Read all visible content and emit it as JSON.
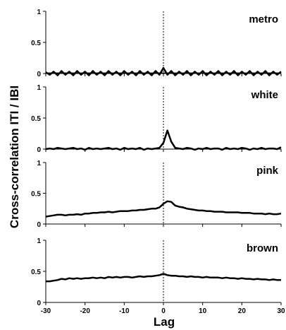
{
  "chart_data": {
    "type": "line",
    "xlabel": "Lag",
    "ylabel": "Cross-correlation ITI / IBI",
    "xlim": [
      -30,
      30
    ],
    "ylim": [
      0,
      1
    ],
    "x_ticks": [
      "-30",
      "-20",
      "-10",
      "0",
      "10",
      "20",
      "30"
    ],
    "y_ticks": [
      "0",
      "0.5",
      "1"
    ],
    "reference_line": {
      "x": 0,
      "style": "dotted"
    },
    "grid": false,
    "panels": [
      {
        "label": "metro",
        "x": [
          -30,
          -29,
          -28,
          -27,
          -26,
          -25,
          -24,
          -23,
          -22,
          -21,
          -20,
          -19,
          -18,
          -17,
          -16,
          -15,
          -14,
          -13,
          -12,
          -11,
          -10,
          -9,
          -8,
          -7,
          -6,
          -5,
          -4,
          -3,
          -2,
          -1,
          0,
          1,
          2,
          3,
          4,
          5,
          6,
          7,
          8,
          9,
          10,
          11,
          12,
          13,
          14,
          15,
          16,
          17,
          18,
          19,
          20,
          21,
          22,
          23,
          24,
          25,
          26,
          27,
          28,
          29,
          30
        ],
        "series": [
          {
            "values": [
              0.02,
              -0.02,
              0.03,
              -0.03,
              0.04,
              -0.02,
              0.03,
              -0.03,
              0.04,
              -0.02,
              0.03,
              -0.03,
              0.04,
              -0.02,
              0.03,
              -0.03,
              0.04,
              -0.02,
              0.03,
              -0.03,
              0.04,
              -0.02,
              0.03,
              -0.03,
              0.04,
              -0.02,
              0.03,
              -0.03,
              0.04,
              -0.02,
              0.09,
              -0.02,
              0.04,
              -0.03,
              0.03,
              -0.02,
              0.04,
              -0.03,
              0.03,
              -0.02,
              0.04,
              -0.03,
              0.03,
              -0.02,
              0.04,
              -0.03,
              0.03,
              -0.02,
              0.04,
              -0.03,
              0.03,
              -0.02,
              0.04,
              -0.03,
              0.03,
              -0.02,
              0.04,
              -0.03,
              0.03,
              -0.02,
              0.03
            ]
          },
          {
            "values": [
              0.01,
              0.01,
              0.01,
              0.01,
              0.01,
              0.01,
              0.01,
              0.01,
              0.01,
              0.01,
              0.01,
              0.01,
              0.01,
              0.01,
              0.01,
              0.01,
              0.01,
              0.01,
              0.01,
              0.01,
              0.01,
              0.01,
              0.01,
              0.01,
              0.01,
              0.01,
              0.01,
              0.01,
              0.01,
              0.01,
              0.01,
              0.01,
              0.01,
              0.01,
              0.01,
              0.01,
              0.01,
              0.01,
              0.01,
              0.01,
              0.01,
              0.01,
              0.01,
              0.01,
              0.01,
              0.01,
              0.01,
              0.01,
              0.01,
              0.01,
              0.01,
              0.01,
              0.01,
              0.01,
              0.01,
              0.01,
              0.01,
              0.01,
              0.01,
              0.01,
              0.01
            ]
          }
        ]
      },
      {
        "label": "white",
        "x": [
          -30,
          -29,
          -28,
          -27,
          -26,
          -25,
          -24,
          -23,
          -22,
          -21,
          -20,
          -19,
          -18,
          -17,
          -16,
          -15,
          -14,
          -13,
          -12,
          -11,
          -10,
          -9,
          -8,
          -7,
          -6,
          -5,
          -4,
          -3,
          -2,
          -1,
          0,
          1,
          2,
          3,
          4,
          5,
          6,
          7,
          8,
          9,
          10,
          11,
          12,
          13,
          14,
          15,
          16,
          17,
          18,
          19,
          20,
          21,
          22,
          23,
          24,
          25,
          26,
          27,
          28,
          29,
          30
        ],
        "series": [
          {
            "values": [
              0.0,
              0.01,
              0.0,
              0.02,
              0.01,
              0.0,
              0.01,
              0.02,
              0.0,
              0.01,
              -0.01,
              0.02,
              0.0,
              0.01,
              0.0,
              0.01,
              0.02,
              0.0,
              0.01,
              -0.01,
              0.02,
              0.0,
              0.01,
              0.0,
              0.02,
              -0.01,
              0.01,
              0.0,
              0.01,
              0.02,
              0.1,
              0.3,
              0.12,
              0.02,
              0.01,
              0.0,
              0.02,
              0.01,
              -0.01,
              0.01,
              0.0,
              0.02,
              0.0,
              0.01,
              0.01,
              -0.01,
              0.02,
              0.0,
              0.01,
              0.0,
              0.02,
              0.01,
              -0.01,
              0.01,
              0.0,
              0.02,
              0.0,
              0.01,
              0.01,
              0.0,
              0.03
            ]
          }
        ]
      },
      {
        "label": "pink",
        "x": [
          -30,
          -29,
          -28,
          -27,
          -26,
          -25,
          -24,
          -23,
          -22,
          -21,
          -20,
          -19,
          -18,
          -17,
          -16,
          -15,
          -14,
          -13,
          -12,
          -11,
          -10,
          -9,
          -8,
          -7,
          -6,
          -5,
          -4,
          -3,
          -2,
          -1,
          0,
          1,
          2,
          3,
          4,
          5,
          6,
          7,
          8,
          9,
          10,
          11,
          12,
          13,
          14,
          15,
          16,
          17,
          18,
          19,
          20,
          21,
          22,
          23,
          24,
          25,
          26,
          27,
          28,
          29,
          30
        ],
        "series": [
          {
            "values": [
              0.12,
              0.13,
              0.14,
              0.15,
              0.15,
              0.14,
              0.15,
              0.15,
              0.16,
              0.15,
              0.17,
              0.17,
              0.18,
              0.18,
              0.19,
              0.19,
              0.2,
              0.19,
              0.2,
              0.21,
              0.21,
              0.21,
              0.22,
              0.22,
              0.23,
              0.23,
              0.24,
              0.25,
              0.25,
              0.27,
              0.33,
              0.37,
              0.36,
              0.3,
              0.28,
              0.27,
              0.25,
              0.24,
              0.23,
              0.22,
              0.22,
              0.21,
              0.21,
              0.2,
              0.2,
              0.2,
              0.19,
              0.19,
              0.19,
              0.19,
              0.18,
              0.18,
              0.18,
              0.17,
              0.17,
              0.17,
              0.16,
              0.17,
              0.16,
              0.16,
              0.17
            ]
          }
        ]
      },
      {
        "label": "brown",
        "x": [
          -30,
          -29,
          -28,
          -27,
          -26,
          -25,
          -24,
          -23,
          -22,
          -21,
          -20,
          -19,
          -18,
          -17,
          -16,
          -15,
          -14,
          -13,
          -12,
          -11,
          -10,
          -9,
          -8,
          -7,
          -6,
          -5,
          -4,
          -3,
          -2,
          -1,
          0,
          1,
          2,
          3,
          4,
          5,
          6,
          7,
          8,
          9,
          10,
          11,
          12,
          13,
          14,
          15,
          16,
          17,
          18,
          19,
          20,
          21,
          22,
          23,
          24,
          25,
          26,
          27,
          28,
          29,
          30
        ],
        "series": [
          {
            "values": [
              0.34,
              0.34,
              0.35,
              0.36,
              0.38,
              0.37,
              0.39,
              0.38,
              0.39,
              0.38,
              0.39,
              0.39,
              0.4,
              0.39,
              0.4,
              0.39,
              0.41,
              0.4,
              0.41,
              0.4,
              0.41,
              0.41,
              0.4,
              0.41,
              0.42,
              0.41,
              0.42,
              0.42,
              0.43,
              0.44,
              0.46,
              0.44,
              0.43,
              0.43,
              0.42,
              0.42,
              0.41,
              0.42,
              0.41,
              0.41,
              0.4,
              0.41,
              0.4,
              0.4,
              0.4,
              0.39,
              0.4,
              0.39,
              0.39,
              0.38,
              0.39,
              0.38,
              0.38,
              0.37,
              0.38,
              0.37,
              0.37,
              0.36,
              0.37,
              0.36,
              0.36
            ]
          }
        ]
      }
    ]
  }
}
